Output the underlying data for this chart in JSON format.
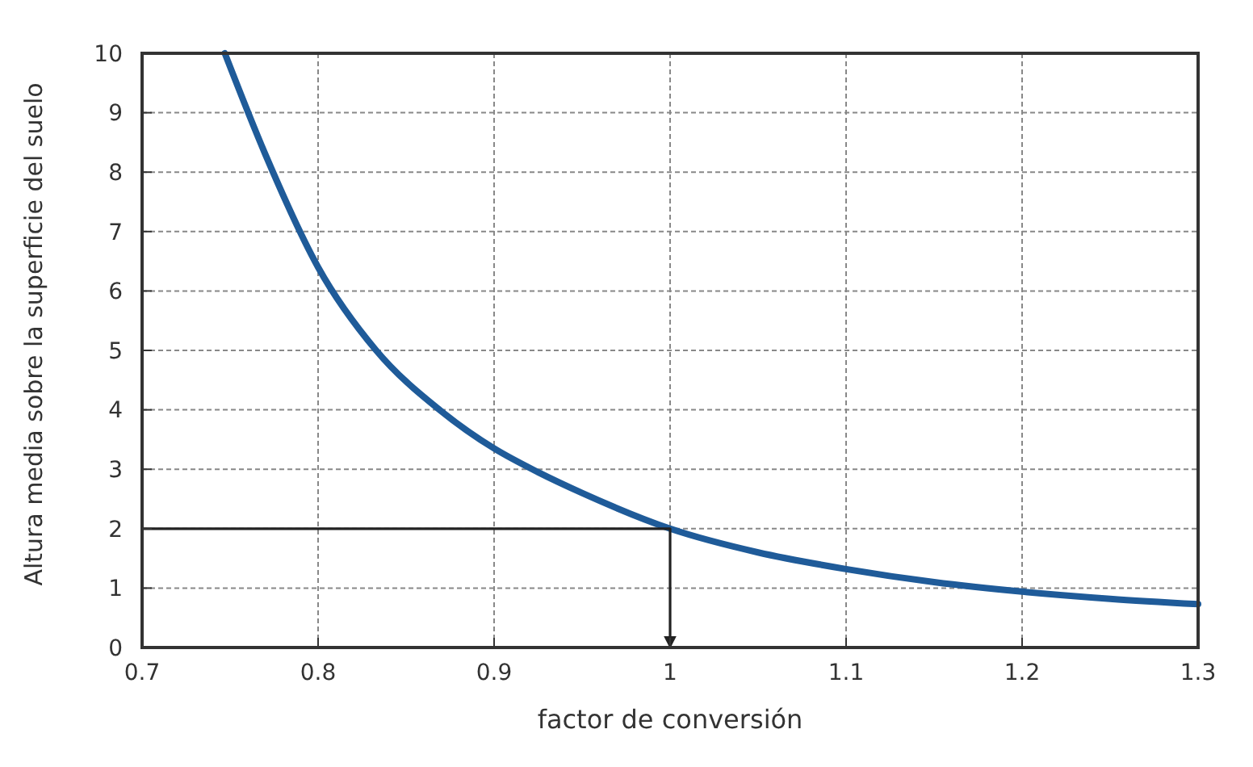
{
  "chart_data": {
    "type": "line",
    "xlabel": "factor de conversión",
    "ylabel": "Altura media sobre la superficie del suelo",
    "xlim": [
      0.7,
      1.3
    ],
    "xticks": [
      0.7,
      0.8,
      0.9,
      1,
      1.1,
      1.2,
      1.3
    ],
    "ylim": [
      0,
      10
    ],
    "yticks": [
      0,
      1,
      2,
      3,
      4,
      5,
      6,
      7,
      8,
      9,
      10
    ],
    "grid": true,
    "line_style": "solid",
    "marker": "none",
    "series": [
      {
        "color": "#1f5b99",
        "x": [
          0.747,
          0.77,
          0.8,
          0.833,
          0.869,
          0.9,
          0.925,
          0.95,
          1,
          1.05,
          1.1,
          1.15,
          1.2,
          1.25,
          1.3
        ],
        "values": [
          10,
          8.3,
          6.4,
          5,
          4,
          3.35,
          2.95,
          2.6,
          2,
          1.6,
          1.32,
          1.1,
          0.94,
          0.82,
          0.73
        ]
      },
      {
        "color": "#222222",
        "x": [
          0.7,
          1,
          1
        ],
        "values": [
          2,
          2,
          0
        ]
      }
    ]
  }
}
